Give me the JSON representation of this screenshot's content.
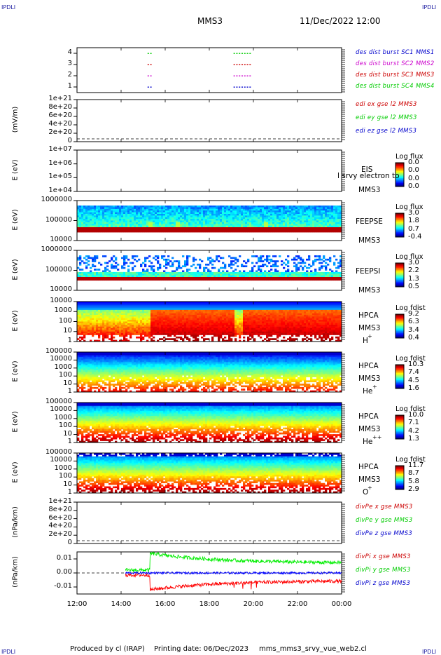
{
  "header": {
    "corner_tl": "IPDLI",
    "corner_tr": "IPDLI",
    "corner_bl": "IPDLI",
    "corner_br": "IPDLI",
    "spacecraft": "MMS3",
    "datetime": "11/Dec/2022 12:00"
  },
  "footer": {
    "produced": "Produced by cl (IRAP)",
    "printing": "Printing date: 06/Dec/2023",
    "file": "mms_mms3_srvy_vue_web2.cl"
  },
  "chart_data": [
    {
      "id": "burst",
      "type": "scatter",
      "ylabel": "",
      "yticks": [
        "4",
        "3",
        "2",
        "1"
      ],
      "legend": [
        {
          "name": "des dist burst SC1 MMS1",
          "color": "#0000cc"
        },
        {
          "name": "des dist burst SC2 MMS2",
          "color": "#cc00cc"
        },
        {
          "name": "des dist burst SC3 MMS3",
          "color": "#cc0000"
        },
        {
          "name": "des dist burst SC4 MMS4",
          "color": "#00cc00"
        }
      ],
      "segments": [
        {
          "sc": 4,
          "t": [
            15.2,
            15.35
          ],
          "color": "#00cc00"
        },
        {
          "sc": 3,
          "t": [
            15.2,
            15.35
          ],
          "color": "#cc0000"
        },
        {
          "sc": 2,
          "t": [
            15.2,
            15.35
          ],
          "color": "#cc00cc"
        },
        {
          "sc": 1,
          "t": [
            15.2,
            15.35
          ],
          "color": "#0000cc"
        },
        {
          "sc": 4,
          "t": [
            19.1,
            19.9
          ],
          "color": "#00cc00"
        },
        {
          "sc": 3,
          "t": [
            19.1,
            19.9
          ],
          "color": "#cc0000"
        },
        {
          "sc": 2,
          "t": [
            19.1,
            19.9
          ],
          "color": "#cc00cc"
        },
        {
          "sc": 1,
          "t": [
            19.1,
            19.9
          ],
          "color": "#0000cc"
        }
      ]
    },
    {
      "id": "edi",
      "type": "line",
      "ylabel": "(mV/m)",
      "yticks": [
        "1e+21",
        "8e+20",
        "6e+20",
        "4e+20",
        "2e+20",
        "0"
      ],
      "legend": [
        {
          "name": "edi ex gse l2 MMS3",
          "color": "#cc0000"
        },
        {
          "name": "edi ey gse l2 MMS3",
          "color": "#00cc00"
        },
        {
          "name": "edi ez gse l2 MMS3",
          "color": "#0000cc"
        }
      ]
    },
    {
      "id": "eis",
      "type": "heatmap",
      "ylabel": "E (eV)",
      "yticks": [
        "1e+07",
        "1e+06",
        "1e+05",
        "1e+04"
      ],
      "instrument": "EIS",
      "instrument2": "MMS3",
      "overlay": "l srvy electron to",
      "colorbar": {
        "title": "Log flux",
        "ticks": [
          "0.0",
          "0.0",
          "0.0",
          "0.0"
        ]
      }
    },
    {
      "id": "feepse",
      "type": "heatmap",
      "ylabel": "E (eV)",
      "yticks": [
        "1000000",
        "100000",
        "10000"
      ],
      "instrument": "FEEPSE",
      "instrument2": "MMS3",
      "colorbar": {
        "title": "Log flux",
        "ticks": [
          "3.0",
          "1.8",
          "0.7",
          "-0.4"
        ]
      }
    },
    {
      "id": "feepsi",
      "type": "heatmap",
      "ylabel": "E (eV)",
      "yticks": [
        "1000000",
        "100000",
        "10000"
      ],
      "instrument": "FEEPSI",
      "instrument2": "MMS3",
      "colorbar": {
        "title": "Log flux",
        "ticks": [
          "3.0",
          "2.2",
          "1.3",
          "0.5"
        ]
      }
    },
    {
      "id": "hpca_h",
      "type": "heatmap",
      "ylabel": "E (eV)",
      "yticks": [
        "10000",
        "1000",
        "100",
        "10",
        "1"
      ],
      "instrument": "HPCA",
      "instrument2": "MMS3",
      "species": "H",
      "charge": "+",
      "colorbar": {
        "title": "Log fdist",
        "ticks": [
          "9.2",
          "6.3",
          "3.4",
          "0.4"
        ]
      }
    },
    {
      "id": "hpca_he",
      "type": "heatmap",
      "ylabel": "E (eV)",
      "yticks": [
        "100000",
        "10000",
        "1000",
        "100",
        "10",
        "1"
      ],
      "instrument": "HPCA",
      "instrument2": "MMS3",
      "species": "He",
      "charge": "+",
      "colorbar": {
        "title": "Log fdist",
        "ticks": [
          "10.3",
          "7.4",
          "4.5",
          "1.6"
        ]
      }
    },
    {
      "id": "hpca_hepp",
      "type": "heatmap",
      "ylabel": "E (eV)",
      "yticks": [
        "100000",
        "10000",
        "1000",
        "100",
        "10",
        "1"
      ],
      "instrument": "HPCA",
      "instrument2": "MMS3",
      "species": "He",
      "charge": "++",
      "colorbar": {
        "title": "Log fdist",
        "ticks": [
          "10.0",
          "7.1",
          "4.2",
          "1.3"
        ]
      }
    },
    {
      "id": "hpca_o",
      "type": "heatmap",
      "ylabel": "E (eV)",
      "yticks": [
        "100000",
        "10000",
        "1000",
        "100",
        "10",
        "1"
      ],
      "instrument": "HPCA",
      "instrument2": "MMS3",
      "species": "O",
      "charge": "+",
      "colorbar": {
        "title": "Log fdist",
        "ticks": [
          "11.7",
          "8.7",
          "5.8",
          "2.9"
        ]
      }
    },
    {
      "id": "divpe",
      "type": "line",
      "ylabel": "(nPa/km)",
      "yticks": [
        "1e+21",
        "8e+20",
        "6e+20",
        "4e+20",
        "2e+20",
        "0"
      ],
      "legend": [
        {
          "name": "divPe x gse MMS3",
          "color": "#cc0000"
        },
        {
          "name": "divPe y gse MMS3",
          "color": "#00cc00"
        },
        {
          "name": "divPe z gse MMS3",
          "color": "#0000cc"
        }
      ]
    },
    {
      "id": "divpi",
      "type": "line",
      "ylabel": "(nPa/km)",
      "yticks": [
        "0.01",
        "0.00",
        "-0.01"
      ],
      "ylim": [
        -0.015,
        0.015
      ],
      "legend": [
        {
          "name": "divPi x gse MMS3",
          "color": "#cc0000"
        },
        {
          "name": "divPi y gse MMS3",
          "color": "#00cc00"
        },
        {
          "name": "divPi z gse MMS3",
          "color": "#0000cc"
        }
      ],
      "series": [
        {
          "name": "x",
          "color": "#ff0000",
          "start": 14.2,
          "mean": -0.0015,
          "perturbed": -0.008
        },
        {
          "name": "y",
          "color": "#00ee00",
          "start": 14.2,
          "mean": 0.002,
          "perturbed": 0.009
        },
        {
          "name": "z",
          "color": "#0000ff",
          "start": 14.2,
          "mean": 0.0,
          "perturbed": 0.0
        }
      ]
    }
  ],
  "xaxis": {
    "ticks": [
      "12:00",
      "14:00",
      "16:00",
      "18:00",
      "20:00",
      "22:00",
      "00:00"
    ],
    "range_hours": [
      12,
      24
    ]
  }
}
